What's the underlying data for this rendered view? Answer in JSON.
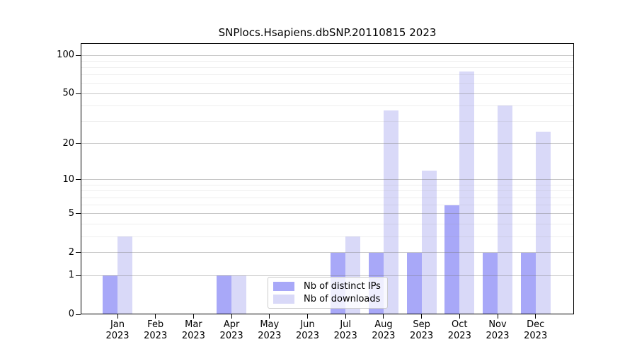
{
  "chart_data": {
    "type": "bar",
    "title": "SNPlocs.Hsapiens.dbSNP.20110815 2023",
    "categories": [
      {
        "month": "Jan",
        "year": "2023"
      },
      {
        "month": "Feb",
        "year": "2023"
      },
      {
        "month": "Mar",
        "year": "2023"
      },
      {
        "month": "Apr",
        "year": "2023"
      },
      {
        "month": "May",
        "year": "2023"
      },
      {
        "month": "Jun",
        "year": "2023"
      },
      {
        "month": "Jul",
        "year": "2023"
      },
      {
        "month": "Aug",
        "year": "2023"
      },
      {
        "month": "Sep",
        "year": "2023"
      },
      {
        "month": "Oct",
        "year": "2023"
      },
      {
        "month": "Nov",
        "year": "2023"
      },
      {
        "month": "Dec",
        "year": "2023"
      }
    ],
    "series": [
      {
        "name": "Nb of distinct IPs",
        "color": "#a8a8f8",
        "values": [
          1,
          0,
          0,
          1,
          0,
          0,
          2,
          2,
          2,
          6,
          2,
          2
        ]
      },
      {
        "name": "Nb of downloads",
        "color": "#d9d9f8",
        "values": [
          3,
          0,
          0,
          1,
          0,
          0,
          3,
          37,
          12,
          75,
          40,
          25
        ]
      }
    ],
    "y_axis": {
      "scale": "log1p",
      "min": 0,
      "max": 100,
      "ticks": [
        0,
        1,
        2,
        5,
        10,
        20,
        50,
        100
      ],
      "minor_gridlines": [
        3,
        4,
        6,
        7,
        8,
        9,
        30,
        40,
        60,
        70,
        80,
        90
      ]
    },
    "grid": true,
    "legend": {
      "position": "lower-center",
      "border_color": "#cccccc",
      "background": "rgba(255,255,255,0.8)"
    },
    "axis_color": "#000000"
  }
}
